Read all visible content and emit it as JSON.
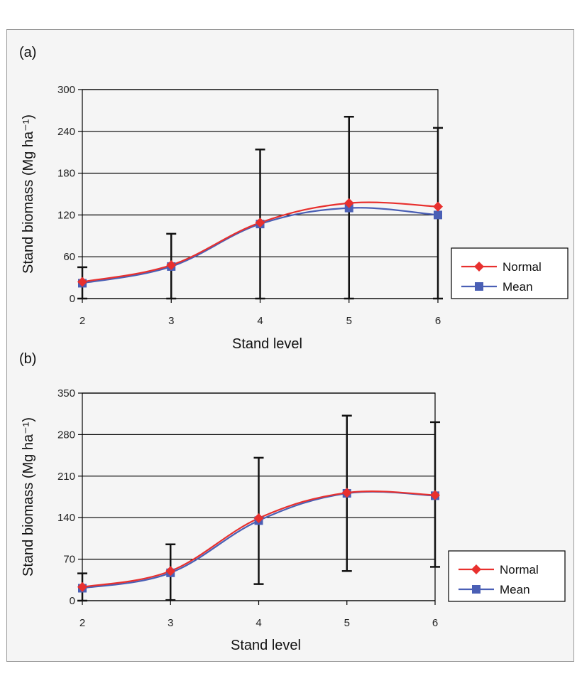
{
  "chart_data": [
    {
      "type": "line",
      "panel_label": "(a)",
      "xlabel": "Stand level",
      "ylabel": "Stand biomass (Mg ha⁻¹)",
      "x": [
        2,
        3,
        4,
        5,
        6
      ],
      "ylim": [
        0,
        300
      ],
      "yticks": [
        0,
        60,
        120,
        180,
        240,
        300
      ],
      "grid": true,
      "legend_position": "right",
      "series": [
        {
          "name": "Normal",
          "color": "#e8302e",
          "marker": "diamond",
          "values": [
            24,
            48,
            109,
            137,
            132
          ]
        },
        {
          "name": "Mean",
          "color": "#4a5fb5",
          "marker": "square",
          "values": [
            22,
            46,
            107,
            130,
            120
          ]
        }
      ],
      "error_bars": [
        {
          "x": 2,
          "low": 0,
          "high": 45
        },
        {
          "x": 3,
          "low": 0,
          "high": 93
        },
        {
          "x": 4,
          "low": 0,
          "high": 214
        },
        {
          "x": 5,
          "low": 0,
          "high": 261
        },
        {
          "x": 6,
          "low": 0,
          "high": 245
        }
      ]
    },
    {
      "type": "line",
      "panel_label": "(b)",
      "xlabel": "Stand level",
      "ylabel": "Stand biomass (Mg ha⁻¹)",
      "x": [
        2,
        3,
        4,
        5,
        6
      ],
      "ylim": [
        0,
        350
      ],
      "yticks": [
        0,
        70,
        140,
        210,
        280,
        350
      ],
      "grid": true,
      "legend_position": "right",
      "series": [
        {
          "name": "Normal",
          "color": "#e8302e",
          "marker": "diamond",
          "values": [
            23,
            50,
            139,
            182,
            178
          ]
        },
        {
          "name": "Mean",
          "color": "#4a5fb5",
          "marker": "square",
          "values": [
            21,
            47,
            135,
            181,
            177
          ]
        }
      ],
      "error_bars": [
        {
          "x": 2,
          "low": 0,
          "high": 46
        },
        {
          "x": 3,
          "low": 1,
          "high": 95
        },
        {
          "x": 4,
          "low": 28,
          "high": 241
        },
        {
          "x": 5,
          "low": 50,
          "high": 312
        },
        {
          "x": 6,
          "low": 57,
          "high": 301
        }
      ]
    }
  ]
}
